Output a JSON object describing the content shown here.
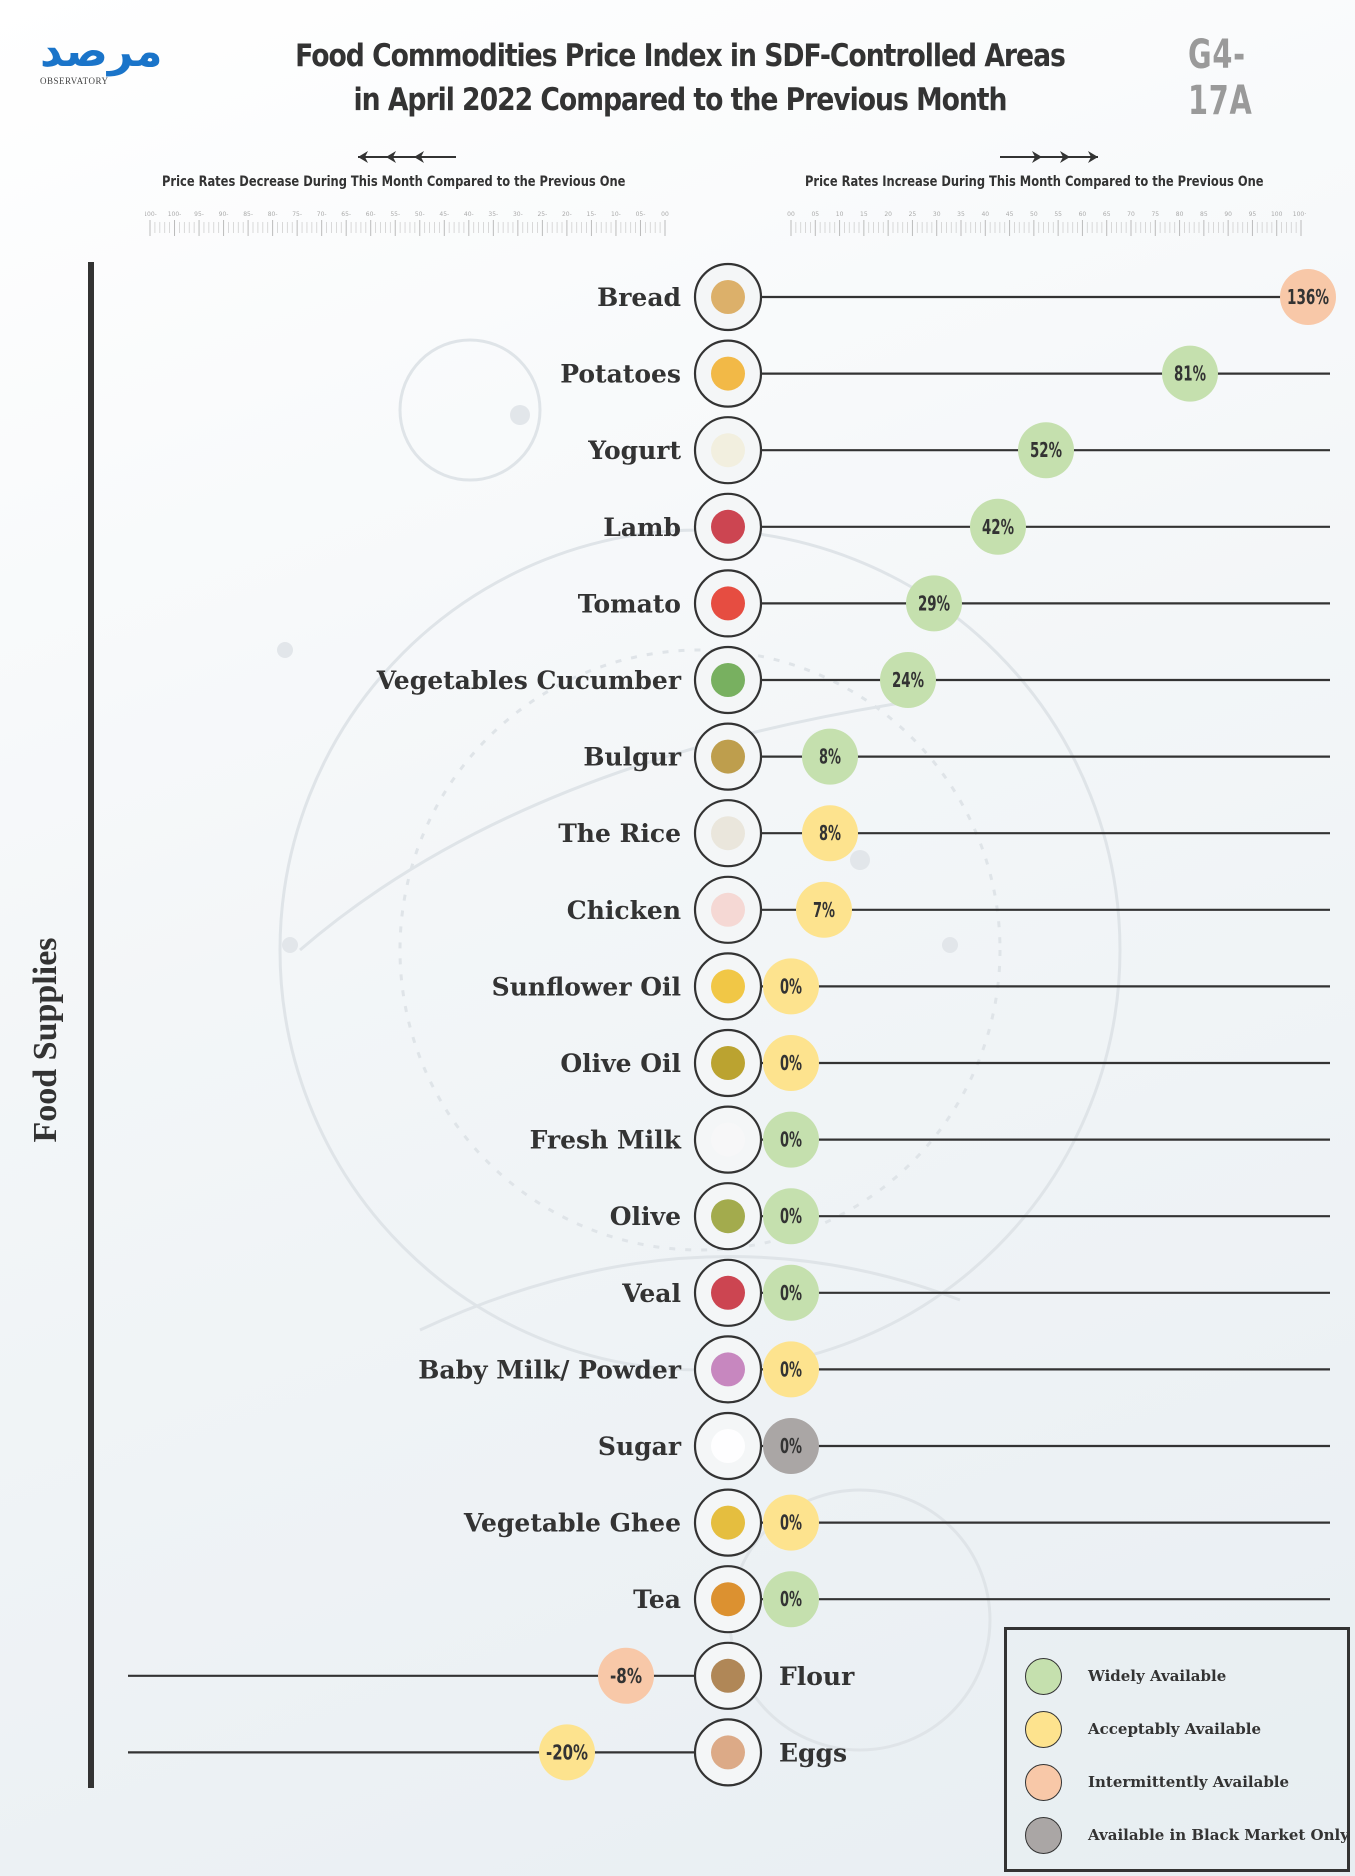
{
  "header": {
    "logo_arabic": "مرصد",
    "logo_english": "OBSERVATORY",
    "title_line1": "Food  Commodities Price Index in SDF-Controlled Areas",
    "title_line2": "in April 2022 Compared to the Previous Month",
    "code": "G4-17A"
  },
  "scale": {
    "decrease_label": "Price Rates Decrease During This Month Compared to the Previous One",
    "increase_label": "Price Rates Increase During This Month Compared to the Previous One",
    "decrease_ticks": [
      "100-",
      "100-",
      "95-",
      "90-",
      "85-",
      "80-",
      "75-",
      "70-",
      "65-",
      "60-",
      "55-",
      "50-",
      "45-",
      "40-",
      "35-",
      "30-",
      "25-",
      "20-",
      "15-",
      "10-",
      "05-",
      "00"
    ],
    "increase_ticks": [
      "00",
      "05",
      "10",
      "15",
      "20",
      "25",
      "30",
      "35",
      "40",
      "45",
      "50",
      "55",
      "60",
      "65",
      "70",
      "75",
      "80",
      "85",
      "90",
      "95",
      "100",
      "100+"
    ]
  },
  "side_label": "Food Supplies",
  "legend": [
    {
      "key": "wide",
      "label": "Widely Available",
      "color": "#c5e0ae"
    },
    {
      "key": "accept",
      "label": "Acceptably Available",
      "color": "#fde38e"
    },
    {
      "key": "intermittent",
      "label": "Intermittently Available",
      "color": "#f8c8a8"
    },
    {
      "key": "black",
      "label": "Available in Black Market Only",
      "color": "#aaa6a5"
    }
  ],
  "icons": {
    "Bread": "bread-icon",
    "Potatoes": "potato-icon",
    "Yogurt": "yogurt-icon",
    "Lamb": "lamb-meat-icon",
    "Tomato": "tomato-icon",
    "Vegetables Cucumber": "cucumber-icon",
    "Bulgur": "bulgur-icon",
    "The Rice": "rice-icon",
    "Chicken": "chicken-icon",
    "Sunflower Oil": "sunflower-oil-icon",
    "Olive Oil": "olive-oil-icon",
    "Fresh Milk": "milk-jug-icon",
    "Olive": "olive-icon",
    "Veal": "veal-meat-icon",
    "Baby Milk/ Powder": "baby-formula-icon",
    "Sugar": "sugar-icon",
    "Vegetable Ghee": "ghee-can-icon",
    "Tea": "tea-cup-icon",
    "Flour": "flour-sack-icon",
    "Eggs": "eggs-icon"
  },
  "chart_data": {
    "type": "dot-line",
    "title": "Food Commodities Price Index in SDF-Controlled Areas in April 2022 Compared to the Previous Month",
    "xlabel_negative": "Price Rates Decrease During This Month Compared to the Previous One",
    "xlabel_positive": "Price Rates Increase During This Month Compared to the Previous One",
    "ylabel": "Food Supplies",
    "unit": "%",
    "xlim": [
      -100,
      100
    ],
    "legend_position": "bottom-right",
    "categories": [
      "Bread",
      "Potatoes",
      "Yogurt",
      "Lamb",
      "Tomato",
      "Vegetables Cucumber",
      "Bulgur",
      "The Rice",
      "Chicken",
      "Sunflower Oil",
      "Olive Oil",
      "Fresh Milk",
      "Olive",
      "Veal",
      "Baby Milk/ Powder",
      "Sugar",
      "Vegetable Ghee",
      "Tea",
      "Flour",
      "Eggs"
    ],
    "values": [
      136,
      81,
      52,
      42,
      29,
      24,
      8,
      8,
      7,
      0,
      0,
      0,
      0,
      0,
      0,
      0,
      0,
      0,
      -8,
      -20
    ],
    "labels": [
      "136%",
      "81%",
      "52%",
      "42%",
      "29%",
      "24%",
      "8%",
      "8%",
      "7%",
      "0%",
      "0%",
      "0%",
      "0%",
      "0%",
      "0%",
      "0%",
      "0%",
      "0%",
      "-8%",
      "-20%"
    ],
    "availability": [
      "intermittent",
      "wide",
      "wide",
      "wide",
      "wide",
      "wide",
      "wide",
      "accept",
      "accept",
      "accept",
      "accept",
      "wide",
      "wide",
      "wide",
      "accept",
      "black",
      "accept",
      "wide",
      "intermittent",
      "accept"
    ]
  }
}
